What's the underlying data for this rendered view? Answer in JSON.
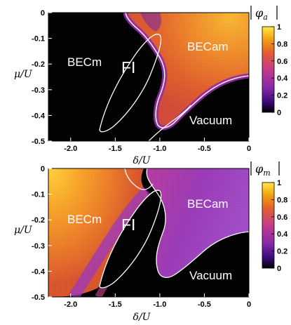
{
  "chart_data": [
    {
      "type": "heatmap",
      "id": "top",
      "colorbar_label": "|φ_a|",
      "xlabel": "δ/U",
      "ylabel": "μ/U",
      "xlim": [
        -2.25,
        0
      ],
      "ylim": [
        -0.5,
        0
      ],
      "xticks": [
        "-2.0",
        "-1.5",
        "-1.0",
        "-0.5",
        "0"
      ],
      "xtick_values": [
        -2.0,
        -1.5,
        -1.0,
        -0.5,
        0
      ],
      "yticks": [
        "0",
        "-0.1",
        "-0.2",
        "-0.3",
        "-0.4",
        "-0.5"
      ],
      "ytick_values": [
        0,
        -0.1,
        -0.2,
        -0.3,
        -0.4,
        -0.5
      ],
      "colorbar": {
        "ticks": [
          "1",
          "0.8",
          "0.6",
          "0.4",
          "0.2",
          "0"
        ],
        "tick_values": [
          1,
          0.8,
          0.6,
          0.4,
          0.2,
          0
        ],
        "range": [
          0,
          1
        ]
      },
      "colormap": [
        "#000000",
        "#3a0a7a",
        "#8a2ba8",
        "#c43c8a",
        "#e2602c",
        "#f0a010",
        "#ffe84a"
      ],
      "regions": [
        {
          "label": "BECm",
          "x": -1.95,
          "y": -0.21,
          "value": 0
        },
        {
          "label": "FI",
          "x": -1.33,
          "y": -0.23,
          "value": 0
        },
        {
          "label": "BECam",
          "x": -0.52,
          "y": -0.14,
          "value": 0.7
        },
        {
          "label": "Vacuum",
          "x": -0.45,
          "y": -0.44,
          "value": 0
        }
      ]
    },
    {
      "type": "heatmap",
      "id": "bottom",
      "colorbar_label": "|φ_m|",
      "xlabel": "δ/U",
      "ylabel": "μ/U",
      "xlim": [
        -2.25,
        0
      ],
      "ylim": [
        -0.5,
        0
      ],
      "xticks": [
        "-2.0",
        "-1.5",
        "-1.0",
        "-0.5",
        "0"
      ],
      "xtick_values": [
        -2.0,
        -1.5,
        -1.0,
        -0.5,
        0
      ],
      "yticks": [
        "0",
        "-0.1",
        "-0.2",
        "-0.3",
        "-0.4",
        "-0.5"
      ],
      "ytick_values": [
        0,
        -0.1,
        -0.2,
        -0.3,
        -0.4,
        -0.5
      ],
      "colorbar": {
        "ticks": [
          "1",
          "0.8",
          "0.6",
          "0.4",
          "0.2",
          "0"
        ],
        "tick_values": [
          1,
          0.8,
          0.6,
          0.4,
          0.2,
          0
        ],
        "range": [
          0,
          1
        ]
      },
      "colormap": [
        "#000000",
        "#3a0a7a",
        "#8a2ba8",
        "#c43c8a",
        "#e2602c",
        "#f0a010",
        "#ffe84a"
      ],
      "regions": [
        {
          "label": "BECm",
          "x": -1.95,
          "y": -0.21,
          "value": 0.85
        },
        {
          "label": "FI",
          "x": -1.33,
          "y": -0.23,
          "value": 0
        },
        {
          "label": "BECam",
          "x": -0.52,
          "y": -0.14,
          "value": 0.35
        },
        {
          "label": "Vacuum",
          "x": -0.45,
          "y": -0.44,
          "value": 0
        }
      ]
    }
  ]
}
